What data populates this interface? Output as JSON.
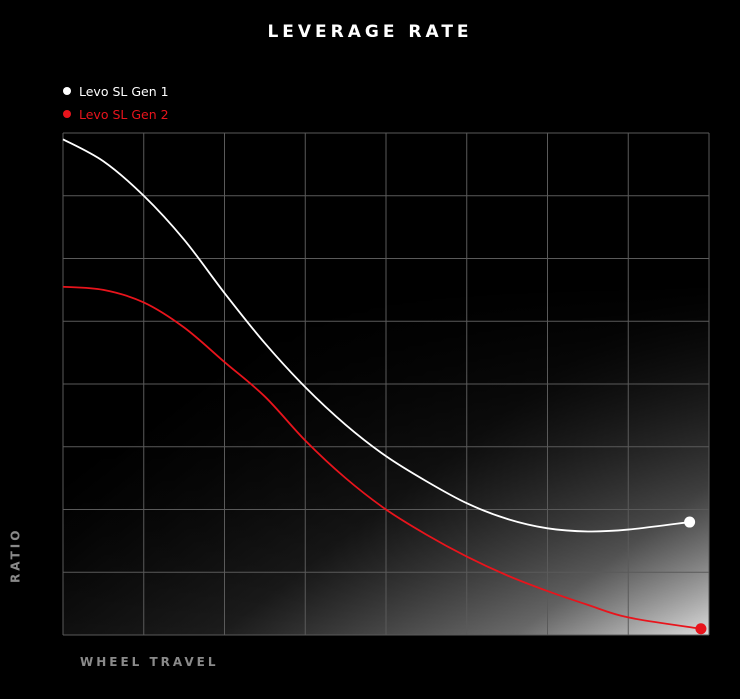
{
  "chart_data": {
    "type": "line",
    "title": "LEVERAGE RATE",
    "xlabel": "WHEEL TRAVEL",
    "ylabel": "RATIO",
    "grid": true,
    "legend_position": "top-left",
    "xlim": [
      0,
      8
    ],
    "ylim": [
      0,
      8
    ],
    "series": [
      {
        "name": "Levo SL Gen 1",
        "color": "#ffffff",
        "x": [
          0,
          0.5,
          1,
          1.5,
          2,
          2.5,
          3,
          3.5,
          4,
          4.5,
          5,
          5.5,
          6,
          6.5,
          7,
          7.76
        ],
        "y": [
          7.9,
          7.55,
          7.0,
          6.3,
          5.45,
          4.65,
          3.95,
          3.35,
          2.85,
          2.45,
          2.1,
          1.85,
          1.7,
          1.65,
          1.68,
          1.8
        ]
      },
      {
        "name": "Levo SL Gen 2",
        "color": "#e8141c",
        "x": [
          0,
          0.5,
          1,
          1.5,
          2,
          2.5,
          3,
          3.5,
          4,
          4.5,
          5,
          5.5,
          6,
          6.5,
          7,
          7.9
        ],
        "y": [
          5.55,
          5.5,
          5.3,
          4.9,
          4.35,
          3.8,
          3.1,
          2.5,
          2.0,
          1.6,
          1.25,
          0.95,
          0.7,
          0.48,
          0.28,
          0.1
        ]
      }
    ]
  }
}
